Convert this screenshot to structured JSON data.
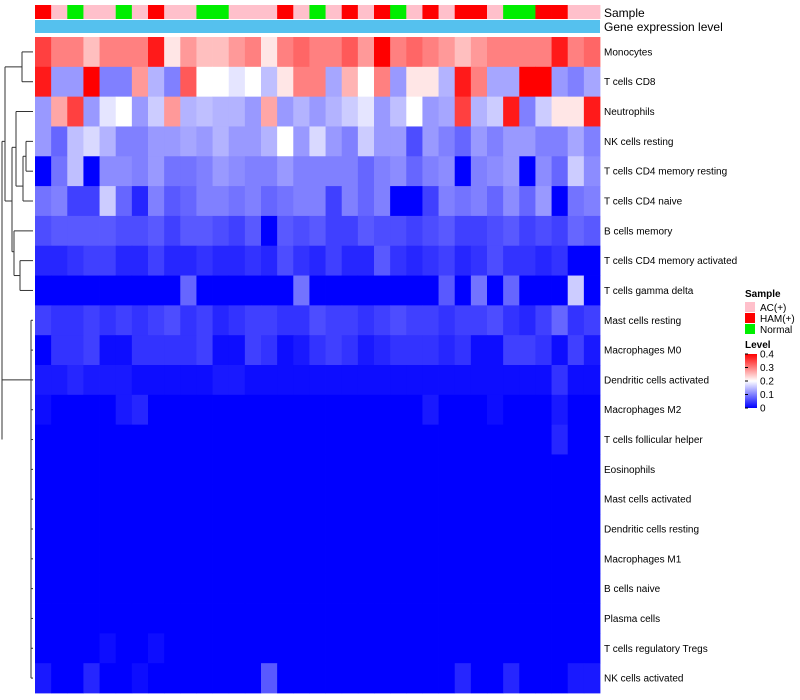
{
  "chart_data": {
    "type": "heatmap",
    "title": "",
    "annotation_labels": {
      "sample": "Sample",
      "gene": "Gene expression level"
    },
    "sample_groups": [
      "AC(+)",
      "HAM(+)",
      "Normal"
    ],
    "sample_colors": {
      "AC(+)": "#ffc0cb",
      "HAM(+)": "#ff0000",
      "Normal": "#00ee00"
    },
    "gene_bar_color": "#55c1ee",
    "columns": [
      "H",
      "A",
      "N",
      "A",
      "A",
      "N",
      "A",
      "H",
      "A",
      "A",
      "N",
      "N",
      "A",
      "A",
      "A",
      "H",
      "A",
      "N",
      "A",
      "H",
      "A",
      "H",
      "N",
      "A",
      "H",
      "A",
      "H",
      "H",
      "A",
      "N",
      "N",
      "H",
      "H",
      "A",
      "A"
    ],
    "rows": [
      "Monocytes",
      "T cells CD8",
      "Neutrophils",
      "NK cells resting",
      "T cells CD4 memory resting",
      "T cells CD4 naive",
      "B cells memory",
      "T cells CD4 memory activated",
      "T cells gamma delta",
      "Mast cells resting",
      "Macrophages M0",
      "Dendritic cells activated",
      "Macrophages M2",
      "T cells follicular helper",
      "Eosinophils",
      "Mast cells activated",
      "Dendritic cells resting",
      "Macrophages M1",
      "B cells naive",
      "Plasma cells",
      "T cells regulatory  Tregs",
      "NK cells activated"
    ],
    "values": [
      [
        0.35,
        0.3,
        0.3,
        0.25,
        0.3,
        0.3,
        0.3,
        0.38,
        0.22,
        0.28,
        0.25,
        0.25,
        0.28,
        0.3,
        0.22,
        0.3,
        0.32,
        0.3,
        0.3,
        0.33,
        0.28,
        0.4,
        0.3,
        0.32,
        0.3,
        0.28,
        0.25,
        0.28,
        0.3,
        0.3,
        0.3,
        0.3,
        0.38,
        0.3,
        0.32
      ],
      [
        0.38,
        0.12,
        0.12,
        0.4,
        0.1,
        0.1,
        0.28,
        0.14,
        0.1,
        0.33,
        0.2,
        0.2,
        0.18,
        0.2,
        0.15,
        0.22,
        0.3,
        0.3,
        0.13,
        0.26,
        0.2,
        0.3,
        0.12,
        0.22,
        0.22,
        0.14,
        0.38,
        0.3,
        0.13,
        0.13,
        0.4,
        0.4,
        0.12,
        0.1,
        0.13
      ],
      [
        0.12,
        0.27,
        0.35,
        0.12,
        0.18,
        0.2,
        0.12,
        0.16,
        0.28,
        0.14,
        0.15,
        0.14,
        0.14,
        0.12,
        0.27,
        0.12,
        0.14,
        0.12,
        0.14,
        0.16,
        0.18,
        0.12,
        0.15,
        0.2,
        0.12,
        0.13,
        0.35,
        0.14,
        0.16,
        0.38,
        0.1,
        0.16,
        0.22,
        0.22,
        0.38
      ],
      [
        0.12,
        0.08,
        0.15,
        0.17,
        0.14,
        0.1,
        0.1,
        0.12,
        0.12,
        0.13,
        0.12,
        0.14,
        0.12,
        0.12,
        0.14,
        0.2,
        0.12,
        0.17,
        0.12,
        0.1,
        0.16,
        0.12,
        0.12,
        0.06,
        0.12,
        0.1,
        0.08,
        0.12,
        0.1,
        0.12,
        0.12,
        0.1,
        0.1,
        0.13,
        0.1
      ],
      [
        0.0,
        0.09,
        0.15,
        0.0,
        0.11,
        0.11,
        0.1,
        0.12,
        0.09,
        0.09,
        0.1,
        0.12,
        0.11,
        0.1,
        0.1,
        0.12,
        0.1,
        0.1,
        0.1,
        0.1,
        0.08,
        0.1,
        0.11,
        0.08,
        0.1,
        0.11,
        0.0,
        0.1,
        0.11,
        0.12,
        0.0,
        0.11,
        0.08,
        0.16,
        0.11
      ],
      [
        0.09,
        0.1,
        0.05,
        0.05,
        0.16,
        0.08,
        0.03,
        0.1,
        0.07,
        0.08,
        0.1,
        0.1,
        0.09,
        0.1,
        0.08,
        0.09,
        0.1,
        0.1,
        0.05,
        0.1,
        0.08,
        0.1,
        0.0,
        0.0,
        0.05,
        0.1,
        0.09,
        0.1,
        0.08,
        0.11,
        0.08,
        0.12,
        0.0,
        0.09,
        0.1
      ],
      [
        0.06,
        0.07,
        0.07,
        0.07,
        0.07,
        0.06,
        0.06,
        0.07,
        0.05,
        0.07,
        0.07,
        0.06,
        0.05,
        0.07,
        0.0,
        0.07,
        0.06,
        0.07,
        0.05,
        0.05,
        0.07,
        0.06,
        0.06,
        0.05,
        0.06,
        0.07,
        0.05,
        0.05,
        0.06,
        0.07,
        0.05,
        0.06,
        0.05,
        0.08,
        0.07
      ],
      [
        0.03,
        0.03,
        0.04,
        0.05,
        0.05,
        0.03,
        0.03,
        0.05,
        0.03,
        0.03,
        0.04,
        0.03,
        0.03,
        0.04,
        0.03,
        0.06,
        0.04,
        0.03,
        0.05,
        0.03,
        0.03,
        0.07,
        0.04,
        0.03,
        0.04,
        0.05,
        0.03,
        0.04,
        0.06,
        0.04,
        0.04,
        0.03,
        0.04,
        0.0,
        0.0
      ],
      [
        0.0,
        0.0,
        0.0,
        0.0,
        0.0,
        0.0,
        0.0,
        0.0,
        0.0,
        0.08,
        0.0,
        0.0,
        0.0,
        0.0,
        0.0,
        0.0,
        0.09,
        0.0,
        0.0,
        0.0,
        0.0,
        0.0,
        0.0,
        0.0,
        0.0,
        0.07,
        0.0,
        0.09,
        0.0,
        0.08,
        0.0,
        0.0,
        0.0,
        0.16,
        0.0
      ],
      [
        0.05,
        0.04,
        0.04,
        0.05,
        0.04,
        0.05,
        0.04,
        0.05,
        0.06,
        0.04,
        0.05,
        0.03,
        0.04,
        0.05,
        0.05,
        0.04,
        0.04,
        0.06,
        0.05,
        0.05,
        0.04,
        0.05,
        0.06,
        0.05,
        0.05,
        0.04,
        0.05,
        0.05,
        0.06,
        0.04,
        0.03,
        0.05,
        0.08,
        0.04,
        0.05
      ],
      [
        0.0,
        0.04,
        0.04,
        0.05,
        0.01,
        0.01,
        0.04,
        0.04,
        0.04,
        0.04,
        0.05,
        0.01,
        0.01,
        0.05,
        0.04,
        0.01,
        0.02,
        0.04,
        0.05,
        0.04,
        0.02,
        0.03,
        0.04,
        0.04,
        0.04,
        0.03,
        0.04,
        0.01,
        0.01,
        0.05,
        0.05,
        0.04,
        0.01,
        0.05,
        0.02
      ],
      [
        0.02,
        0.02,
        0.03,
        0.02,
        0.02,
        0.02,
        0.01,
        0.01,
        0.01,
        0.01,
        0.01,
        0.02,
        0.02,
        0.01,
        0.01,
        0.01,
        0.01,
        0.01,
        0.01,
        0.01,
        0.01,
        0.01,
        0.01,
        0.01,
        0.01,
        0.01,
        0.01,
        0.01,
        0.01,
        0.01,
        0.01,
        0.01,
        0.04,
        0.01,
        0.01
      ],
      [
        0.01,
        0.0,
        0.0,
        0.0,
        0.0,
        0.02,
        0.03,
        0.0,
        0.0,
        0.0,
        0.0,
        0.0,
        0.0,
        0.0,
        0.0,
        0.0,
        0.0,
        0.0,
        0.0,
        0.0,
        0.0,
        0.0,
        0.0,
        0.0,
        0.02,
        0.0,
        0.0,
        0.0,
        0.01,
        0.0,
        0.0,
        0.0,
        0.02,
        0.0,
        0.0
      ],
      [
        0.0,
        0.0,
        0.0,
        0.0,
        0.0,
        0.0,
        0.0,
        0.0,
        0.0,
        0.0,
        0.0,
        0.0,
        0.0,
        0.0,
        0.0,
        0.0,
        0.0,
        0.0,
        0.0,
        0.0,
        0.0,
        0.0,
        0.0,
        0.0,
        0.0,
        0.0,
        0.0,
        0.0,
        0.0,
        0.0,
        0.0,
        0.0,
        0.03,
        0.0,
        0.0
      ],
      [
        0.0,
        0.0,
        0.0,
        0.0,
        0.0,
        0.0,
        0.0,
        0.0,
        0.0,
        0.0,
        0.0,
        0.0,
        0.0,
        0.0,
        0.0,
        0.0,
        0.0,
        0.0,
        0.0,
        0.0,
        0.0,
        0.0,
        0.0,
        0.0,
        0.0,
        0.0,
        0.0,
        0.0,
        0.0,
        0.0,
        0.0,
        0.0,
        0.0,
        0.0,
        0.0
      ],
      [
        0.0,
        0.0,
        0.0,
        0.0,
        0.0,
        0.0,
        0.0,
        0.0,
        0.0,
        0.0,
        0.0,
        0.0,
        0.0,
        0.0,
        0.0,
        0.0,
        0.0,
        0.0,
        0.0,
        0.0,
        0.0,
        0.0,
        0.0,
        0.0,
        0.0,
        0.0,
        0.0,
        0.0,
        0.0,
        0.0,
        0.0,
        0.0,
        0.0,
        0.0,
        0.0
      ],
      [
        0.0,
        0.0,
        0.0,
        0.0,
        0.0,
        0.0,
        0.0,
        0.0,
        0.0,
        0.0,
        0.0,
        0.0,
        0.0,
        0.0,
        0.0,
        0.0,
        0.0,
        0.0,
        0.0,
        0.0,
        0.0,
        0.0,
        0.0,
        0.0,
        0.0,
        0.0,
        0.0,
        0.0,
        0.0,
        0.0,
        0.0,
        0.0,
        0.0,
        0.0,
        0.0
      ],
      [
        0.0,
        0.0,
        0.0,
        0.0,
        0.0,
        0.0,
        0.0,
        0.0,
        0.0,
        0.0,
        0.0,
        0.0,
        0.0,
        0.0,
        0.0,
        0.0,
        0.0,
        0.0,
        0.0,
        0.0,
        0.0,
        0.0,
        0.0,
        0.0,
        0.0,
        0.0,
        0.0,
        0.0,
        0.0,
        0.0,
        0.0,
        0.0,
        0.0,
        0.0,
        0.0
      ],
      [
        0.0,
        0.0,
        0.0,
        0.0,
        0.0,
        0.0,
        0.0,
        0.0,
        0.0,
        0.0,
        0.0,
        0.0,
        0.0,
        0.0,
        0.0,
        0.0,
        0.0,
        0.0,
        0.0,
        0.0,
        0.0,
        0.0,
        0.0,
        0.0,
        0.0,
        0.0,
        0.0,
        0.0,
        0.0,
        0.0,
        0.0,
        0.0,
        0.0,
        0.0,
        0.0
      ],
      [
        0.0,
        0.0,
        0.0,
        0.0,
        0.0,
        0.0,
        0.0,
        0.0,
        0.0,
        0.0,
        0.0,
        0.0,
        0.0,
        0.0,
        0.0,
        0.0,
        0.0,
        0.0,
        0.0,
        0.0,
        0.0,
        0.0,
        0.0,
        0.0,
        0.0,
        0.0,
        0.0,
        0.0,
        0.0,
        0.0,
        0.0,
        0.0,
        0.0,
        0.0,
        0.0
      ],
      [
        0.0,
        0.0,
        0.0,
        0.0,
        0.01,
        0.0,
        0.0,
        0.01,
        0.0,
        0.0,
        0.0,
        0.0,
        0.0,
        0.0,
        0.0,
        0.0,
        0.0,
        0.0,
        0.0,
        0.0,
        0.0,
        0.0,
        0.0,
        0.0,
        0.0,
        0.0,
        0.0,
        0.0,
        0.0,
        0.0,
        0.0,
        0.0,
        0.0,
        0.0,
        0.0
      ],
      [
        0.02,
        0.0,
        0.0,
        0.03,
        0.0,
        0.0,
        0.01,
        0.0,
        0.0,
        0.0,
        0.0,
        0.0,
        0.0,
        0.0,
        0.07,
        0.0,
        0.0,
        0.0,
        0.0,
        0.0,
        0.0,
        0.0,
        0.0,
        0.0,
        0.0,
        0.0,
        0.03,
        0.0,
        0.0,
        0.03,
        0.0,
        0.0,
        0.0,
        0.02,
        0.02
      ]
    ],
    "legend": {
      "sample_title": "Sample",
      "level_title": "Level",
      "level_ticks": [
        "0.4",
        "0.3",
        "0.2",
        "0.1",
        "0"
      ],
      "level_tick_values": [
        0.4,
        0.3,
        0.2,
        0.1,
        0.0
      ],
      "color_low": "#0000ff",
      "color_mid": "#ffffff",
      "color_high": "#ff0000",
      "mid_value": 0.2,
      "max_value": 0.4
    }
  }
}
